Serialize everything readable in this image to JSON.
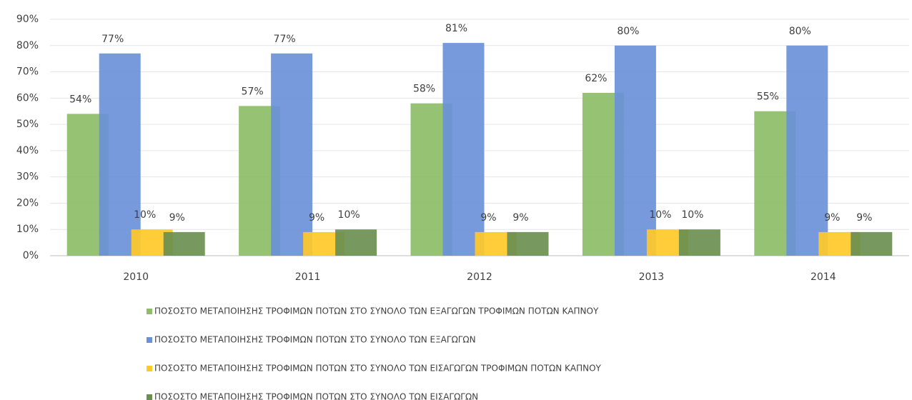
{
  "chart_data": {
    "type": "bar",
    "categories": [
      "2010",
      "2011",
      "2012",
      "2013",
      "2014"
    ],
    "series": [
      {
        "name": "ΠΟΣΟΣΤΟ ΜΕΤΑΠΟΙΗΣΗΣ ΤΡΟΦΙΜΩΝ ΠΟΤΩΝ ΣΤΟ ΣΥΝΟΛΟ ΤΩΝ ΕΞΑΓΩΓΩΝ ΤΡΟΦΙΜΩΝ ΠΟΤΩΝ ΚΑΠΝΟΥ",
        "color": "#8dbd67",
        "values": [
          54,
          57,
          58,
          62,
          55
        ],
        "value_labels": [
          "54%",
          "57%",
          "58%",
          "62%",
          "55%"
        ]
      },
      {
        "name": "ΠΟΣΟΣΤΟ ΜΕΤΑΠΟΙΗΣΗΣ ΤΡΟΦΙΜΩΝ ΠΟΤΩΝ ΣΤΟ ΣΥΝΟΛΟ ΤΩΝ ΕΞΑΓΩΓΩΝ",
        "color": "#6a91d8",
        "values": [
          77,
          77,
          81,
          80,
          80
        ],
        "value_labels": [
          "77%",
          "77%",
          "81%",
          "80%",
          "80%"
        ]
      },
      {
        "name": "ΠΟΣΟΣΤΟ ΜΕΤΑΠΟΙΗΣΗΣ ΤΡΟΦΙΜΩΝ ΠΟΤΩΝ ΣΤΟ ΣΥΝΟΛΟ ΤΩΝ ΕΙΣΑΓΩΓΩΝ ΤΡΟΦΙΜΩΝ ΠΟΤΩΝ ΚΑΠΝΟΥ",
        "color": "#ffc929",
        "values": [
          10,
          9,
          9,
          10,
          9
        ],
        "value_labels": [
          "10%",
          "9%",
          "9%",
          "10%",
          "9%"
        ]
      },
      {
        "name": "ΠΟΣΟΣΤΟ ΜΕΤΑΠΟΙΗΣΗΣ ΤΡΟΦΙΜΩΝ ΠΟΤΩΝ ΣΤΟ ΣΥΝΟΛΟ ΤΩΝ ΕΙΣΑΓΩΓΩΝ",
        "color": "#6b8f50",
        "values": [
          9,
          10,
          9,
          10,
          9
        ],
        "value_labels": [
          "9%",
          "10%",
          "9%",
          "10%",
          "9%"
        ]
      }
    ],
    "ylim": [
      0,
      90
    ],
    "yticks": [
      {
        "value": 0,
        "label": "0%"
      },
      {
        "value": 10,
        "label": "10%"
      },
      {
        "value": 20,
        "label": "20%"
      },
      {
        "value": 30,
        "label": "30%"
      },
      {
        "value": 40,
        "label": "40%"
      },
      {
        "value": 50,
        "label": "50%"
      },
      {
        "value": 60,
        "label": "60%"
      },
      {
        "value": 70,
        "label": "70%"
      },
      {
        "value": 80,
        "label": "80%"
      },
      {
        "value": 90,
        "label": "90%"
      }
    ],
    "grid": true,
    "legend": "bottom"
  }
}
